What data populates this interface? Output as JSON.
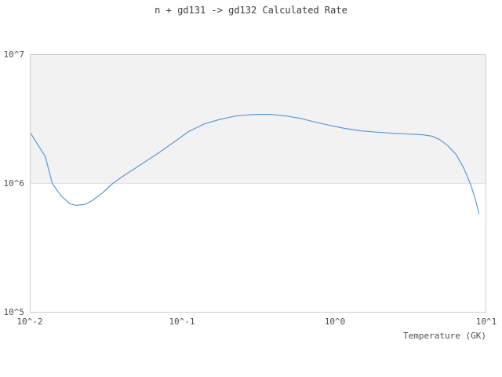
{
  "title": "n + gd131 -> gd132 Calculated Rate",
  "axes": {
    "x_label": "Temperature (GK)",
    "x_ticks": [
      "10^-2",
      "10^-1",
      "10^0",
      "10^1"
    ],
    "y_ticks": [
      "10^5",
      "10^6",
      "10^7"
    ]
  },
  "colors": {
    "line": "#5b9bd5",
    "band": "#f2f2f2",
    "gridline": "#e0e0e0",
    "spine": "#cdcdcd",
    "title_text": "#3d3d3d",
    "tick_text": "#4e4e4e"
  },
  "chart_data": {
    "type": "line",
    "title": "n + gd131 -> gd132 Calculated Rate",
    "xlabel": "Temperature (GK)",
    "ylabel": "",
    "x_scale": "log",
    "y_scale": "log",
    "xlim": [
      0.01,
      10
    ],
    "ylim": [
      100000.0,
      10000000.0
    ],
    "x_tick_labels": [
      "10^-2",
      "10^-1",
      "10^0",
      "10^1"
    ],
    "y_tick_labels": [
      "10^5",
      "10^6",
      "10^7"
    ],
    "grid": "horizontal gridline at 1e6; shaded band between 1e6 and 1e7; no vertical gridlines",
    "legend": "none",
    "gridlines_y": [
      1000000.0
    ],
    "bands": [
      {
        "from": 1000000.0,
        "to": 10000000.0
      }
    ],
    "series": [
      {
        "name": "calculated-rate",
        "x": [
          0.01,
          0.0125,
          0.0139,
          0.0159,
          0.0181,
          0.0201,
          0.0227,
          0.0255,
          0.0298,
          0.0348,
          0.0426,
          0.0542,
          0.0685,
          0.0871,
          0.11,
          0.139,
          0.177,
          0.225,
          0.302,
          0.382,
          0.483,
          0.61,
          0.73,
          0.93,
          1.18,
          1.49,
          1.9,
          2.4,
          3.05,
          3.87,
          4.45,
          5.0,
          5.65,
          6.4,
          7.2,
          8.0,
          8.6,
          9.05
        ],
        "y": [
          2460000.0,
          1620000.0,
          1000000.0,
          800000.0,
          695000.0,
          675000.0,
          685000.0,
          735000.0,
          845000.0,
          1000000.0,
          1180000.0,
          1420000.0,
          1700000.0,
          2070000.0,
          2530000.0,
          2900000.0,
          3150000.0,
          3350000.0,
          3450000.0,
          3450000.0,
          3350000.0,
          3200000.0,
          3030000.0,
          2840000.0,
          2680000.0,
          2570000.0,
          2510000.0,
          2460000.0,
          2420000.0,
          2390000.0,
          2330000.0,
          2190000.0,
          1960000.0,
          1680000.0,
          1310000.0,
          970000.0,
          740000.0,
          585000.0
        ]
      }
    ]
  }
}
